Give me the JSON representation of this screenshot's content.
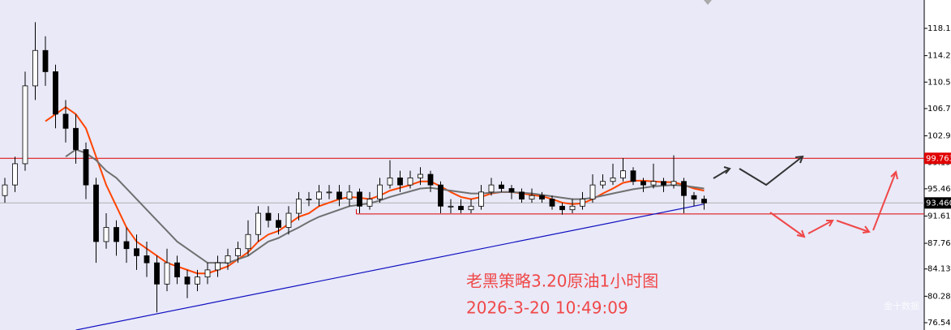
{
  "chart_data": {
    "type": "candlestick",
    "title": "老黑策略3.20原油1小时图",
    "subtitle": "2026-3-20 10:49:09",
    "watermark": "金十数据",
    "ylim": [
      75.51,
      122.13
    ],
    "yticks": [
      {
        "value": 118.12,
        "label": "118.120"
      },
      {
        "value": 114.27,
        "label": "114.270"
      },
      {
        "value": 110.53,
        "label": "110.530"
      },
      {
        "value": 106.79,
        "label": "106.790"
      },
      {
        "value": 102.94,
        "label": "102.940"
      },
      {
        "value": 99.19,
        "label": "99.190"
      },
      {
        "value": 95.46,
        "label": "95.460"
      },
      {
        "value": 91.61,
        "label": "91.610"
      },
      {
        "value": 87.76,
        "label": "87.760"
      },
      {
        "value": 84.13,
        "label": "84.130"
      },
      {
        "value": 80.28,
        "label": "80.280"
      },
      {
        "value": 76.54,
        "label": "76.540"
      }
    ],
    "resistance": 99.763,
    "support": 91.9,
    "last_price": {
      "value": 93.46,
      "label": "93.460"
    },
    "trendline": {
      "color": "#1010c0",
      "from": [
        7,
        75.5
      ],
      "to": [
        69,
        93.3
      ]
    },
    "ohlc": [
      [
        94.5,
        97,
        93.5,
        96
      ],
      [
        96,
        100,
        95,
        99
      ],
      [
        99,
        112,
        98,
        110
      ],
      [
        110,
        119,
        108,
        115
      ],
      [
        115,
        117,
        110,
        112
      ],
      [
        112,
        113,
        104,
        106
      ],
      [
        106,
        108,
        102,
        104
      ],
      [
        104,
        106,
        99,
        101
      ],
      [
        101,
        102,
        94,
        96
      ],
      [
        96,
        97,
        85,
        88
      ],
      [
        88,
        92,
        87,
        90
      ],
      [
        90,
        91,
        86,
        88
      ],
      [
        88,
        90,
        85,
        87
      ],
      [
        87,
        89,
        84,
        86
      ],
      [
        86,
        88,
        83,
        85
      ],
      [
        85,
        86,
        78,
        82
      ],
      [
        82,
        87,
        81,
        85
      ],
      [
        85,
        86,
        82,
        83
      ],
      [
        83,
        84,
        80,
        82
      ],
      [
        82,
        84,
        81,
        83
      ],
      [
        83,
        85,
        82,
        84
      ],
      [
        84,
        86,
        83,
        85
      ],
      [
        85,
        87,
        84,
        86
      ],
      [
        86,
        88,
        85,
        87
      ],
      [
        87,
        91,
        86,
        89
      ],
      [
        89,
        93,
        88,
        92
      ],
      [
        92,
        93,
        90,
        91
      ],
      [
        91,
        92,
        89,
        90
      ],
      [
        90,
        93,
        89,
        92
      ],
      [
        92,
        95,
        91,
        94
      ],
      [
        94,
        95,
        93,
        94
      ],
      [
        94,
        96,
        93,
        95
      ],
      [
        95,
        96,
        94,
        95
      ],
      [
        95,
        96,
        93,
        94
      ],
      [
        94,
        96,
        93,
        95
      ],
      [
        95,
        95.5,
        92,
        93
      ],
      [
        93,
        95,
        92.5,
        94
      ],
      [
        94,
        97,
        93.5,
        96
      ],
      [
        96,
        99.5,
        95.5,
        97
      ],
      [
        97,
        98,
        95,
        96
      ],
      [
        96,
        98,
        95.5,
        97
      ],
      [
        97,
        98.5,
        96,
        97.5
      ],
      [
        97.5,
        98,
        95,
        96
      ],
      [
        96,
        96.5,
        92,
        93
      ],
      [
        93,
        94,
        92,
        93
      ],
      [
        93,
        94,
        92,
        92.5
      ],
      [
        92.5,
        94,
        92,
        93
      ],
      [
        93,
        96,
        92.5,
        95
      ],
      [
        95,
        97,
        94.5,
        96
      ],
      [
        96,
        96.5,
        95,
        95.5
      ],
      [
        95.5,
        96,
        94,
        95
      ],
      [
        95,
        95.5,
        93.5,
        94
      ],
      [
        94,
        95.5,
        93.5,
        94.5
      ],
      [
        94.5,
        95,
        93.5,
        94
      ],
      [
        94,
        94.5,
        92.5,
        93
      ],
      [
        93,
        93.5,
        91.8,
        92.5
      ],
      [
        92.5,
        94,
        92,
        93
      ],
      [
        93,
        95,
        92.5,
        94
      ],
      [
        94,
        97.5,
        93.5,
        96
      ],
      [
        96,
        97.5,
        95.5,
        96.5
      ],
      [
        96.5,
        99,
        96,
        97
      ],
      [
        97,
        99.8,
        96.5,
        98
      ],
      [
        98,
        98.5,
        96,
        96.5
      ],
      [
        96.5,
        97,
        95,
        96
      ],
      [
        96,
        99,
        95.5,
        96.5
      ],
      [
        96.5,
        97,
        95,
        96
      ],
      [
        96,
        100.2,
        95.5,
        96.5
      ],
      [
        96.5,
        97,
        92,
        94.5
      ],
      [
        94.5,
        95,
        93,
        94
      ],
      [
        94,
        94.5,
        92.5,
        93.46
      ]
    ],
    "series": [
      {
        "name": "MA-fast",
        "color": "#ff4500",
        "values": [
          null,
          null,
          null,
          null,
          105,
          106,
          107,
          106,
          104,
          100,
          96,
          93,
          90,
          88,
          87,
          86,
          85,
          84.5,
          84,
          83.5,
          83.5,
          84,
          84.5,
          85.5,
          86.5,
          88,
          89,
          89.5,
          90.5,
          91.5,
          92,
          93,
          93.5,
          94,
          94.3,
          94.2,
          94,
          94.5,
          95.2,
          95.6,
          96,
          96.5,
          96.5,
          95.8,
          95,
          94.3,
          94,
          94.3,
          94.8,
          95,
          95,
          94.8,
          94.6,
          94.4,
          94,
          93.5,
          93.3,
          93.4,
          94,
          94.8,
          95.5,
          96.3,
          96.6,
          96.6,
          96.5,
          96.4,
          96.4,
          96,
          95.5,
          95.2
        ]
      },
      {
        "name": "MA-slow",
        "color": "#707070",
        "values": [
          null,
          null,
          null,
          null,
          null,
          null,
          100,
          101,
          100.5,
          99.5,
          98,
          97,
          95.5,
          94,
          92.5,
          91,
          89.5,
          88,
          87,
          86,
          85,
          85,
          85,
          85.5,
          86,
          87,
          88,
          88.5,
          89.3,
          90,
          90.8,
          91.5,
          92,
          92.5,
          93,
          93.2,
          93.4,
          93.8,
          94.3,
          94.7,
          95.1,
          95.5,
          95.6,
          95.4,
          95.2,
          95,
          94.8,
          94.8,
          94.9,
          95,
          95,
          94.9,
          94.8,
          94.6,
          94.4,
          94.2,
          94,
          94,
          94.2,
          94.5,
          94.8,
          95.1,
          95.4,
          95.6,
          95.8,
          95.9,
          96,
          95.9,
          95.7,
          95.5
        ]
      }
    ]
  }
}
